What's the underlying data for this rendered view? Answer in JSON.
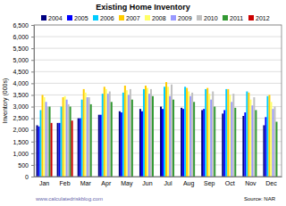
{
  "chart_data": {
    "type": "bar",
    "title": "Existing Home Inventory",
    "y_label": "Inventory (000s)",
    "annotations": [
      "www.calculatedriskblog.com",
      "Source: NAR"
    ],
    "categories": [
      "Jan",
      "Feb",
      "Mar",
      "Apr",
      "May",
      "Jun",
      "Jul",
      "Aug",
      "Sep",
      "Oct",
      "Nov",
      "Dec"
    ],
    "series": [
      {
        "name": "2004",
        "color": "#000080",
        "values": [
          2200,
          2300,
          2500,
          2650,
          2800,
          2900,
          3000,
          2950,
          2850,
          2700,
          2600,
          2200
        ]
      },
      {
        "name": "2005",
        "color": "#0000ff",
        "values": [
          2150,
          2300,
          2500,
          2650,
          2750,
          2800,
          2900,
          2900,
          2900,
          2850,
          2750,
          2550
        ]
      },
      {
        "name": "2006",
        "color": "#00ccff",
        "values": [
          2850,
          3000,
          3300,
          3550,
          3600,
          3750,
          3850,
          3850,
          3750,
          3750,
          3650,
          3450
        ]
      },
      {
        "name": "2007",
        "color": "#ffcc00",
        "values": [
          3500,
          3400,
          3750,
          3850,
          3900,
          3900,
          4050,
          3800,
          3800,
          3750,
          3600,
          3500
        ]
      },
      {
        "name": "2008",
        "color": "#ffff66",
        "values": [
          3400,
          3450,
          3600,
          3750,
          3700,
          3800,
          3850,
          3650,
          3550,
          3500,
          3300,
          3200
        ]
      },
      {
        "name": "2009",
        "color": "#9999ff",
        "values": [
          3200,
          3300,
          3400,
          3550,
          3500,
          3550,
          3450,
          3450,
          3300,
          3200,
          3050,
          2900
        ]
      },
      {
        "name": "2010",
        "color": "#c0c0c0",
        "values": [
          3000,
          3100,
          3400,
          3650,
          3750,
          3750,
          3950,
          3600,
          3650,
          3550,
          3400,
          3000
        ]
      },
      {
        "name": "2011",
        "color": "#339933",
        "values": [
          3000,
          3000,
          3100,
          3200,
          3300,
          3450,
          3300,
          3200,
          3000,
          2950,
          2850,
          2350
        ]
      },
      {
        "name": "2012",
        "color": "#cc0000",
        "values": [
          2300,
          2400,
          null,
          null,
          null,
          null,
          null,
          null,
          null,
          null,
          null,
          null
        ]
      }
    ],
    "ylim": [
      0,
      6500
    ],
    "yticks": [
      0,
      500,
      {
        "value": 1000,
        "label": "1,000"
      },
      {
        "value": 1500,
        "label": "1,500"
      },
      {
        "value": 2000,
        "label": "2,000"
      },
      {
        "value": 2500,
        "label": "2,500"
      },
      {
        "value": 3000,
        "label": "3,000"
      },
      {
        "value": 3500,
        "label": "3,500"
      },
      {
        "value": 4000,
        "label": "4,000"
      },
      {
        "value": 4500,
        "label": "4,500"
      },
      {
        "value": 5000,
        "label": "5,000"
      },
      {
        "value": 5500,
        "label": "5,500"
      },
      {
        "value": 6000,
        "label": "6,000"
      },
      {
        "value": 6500,
        "label": "6,500"
      }
    ],
    "grid": true,
    "legend": "top"
  }
}
